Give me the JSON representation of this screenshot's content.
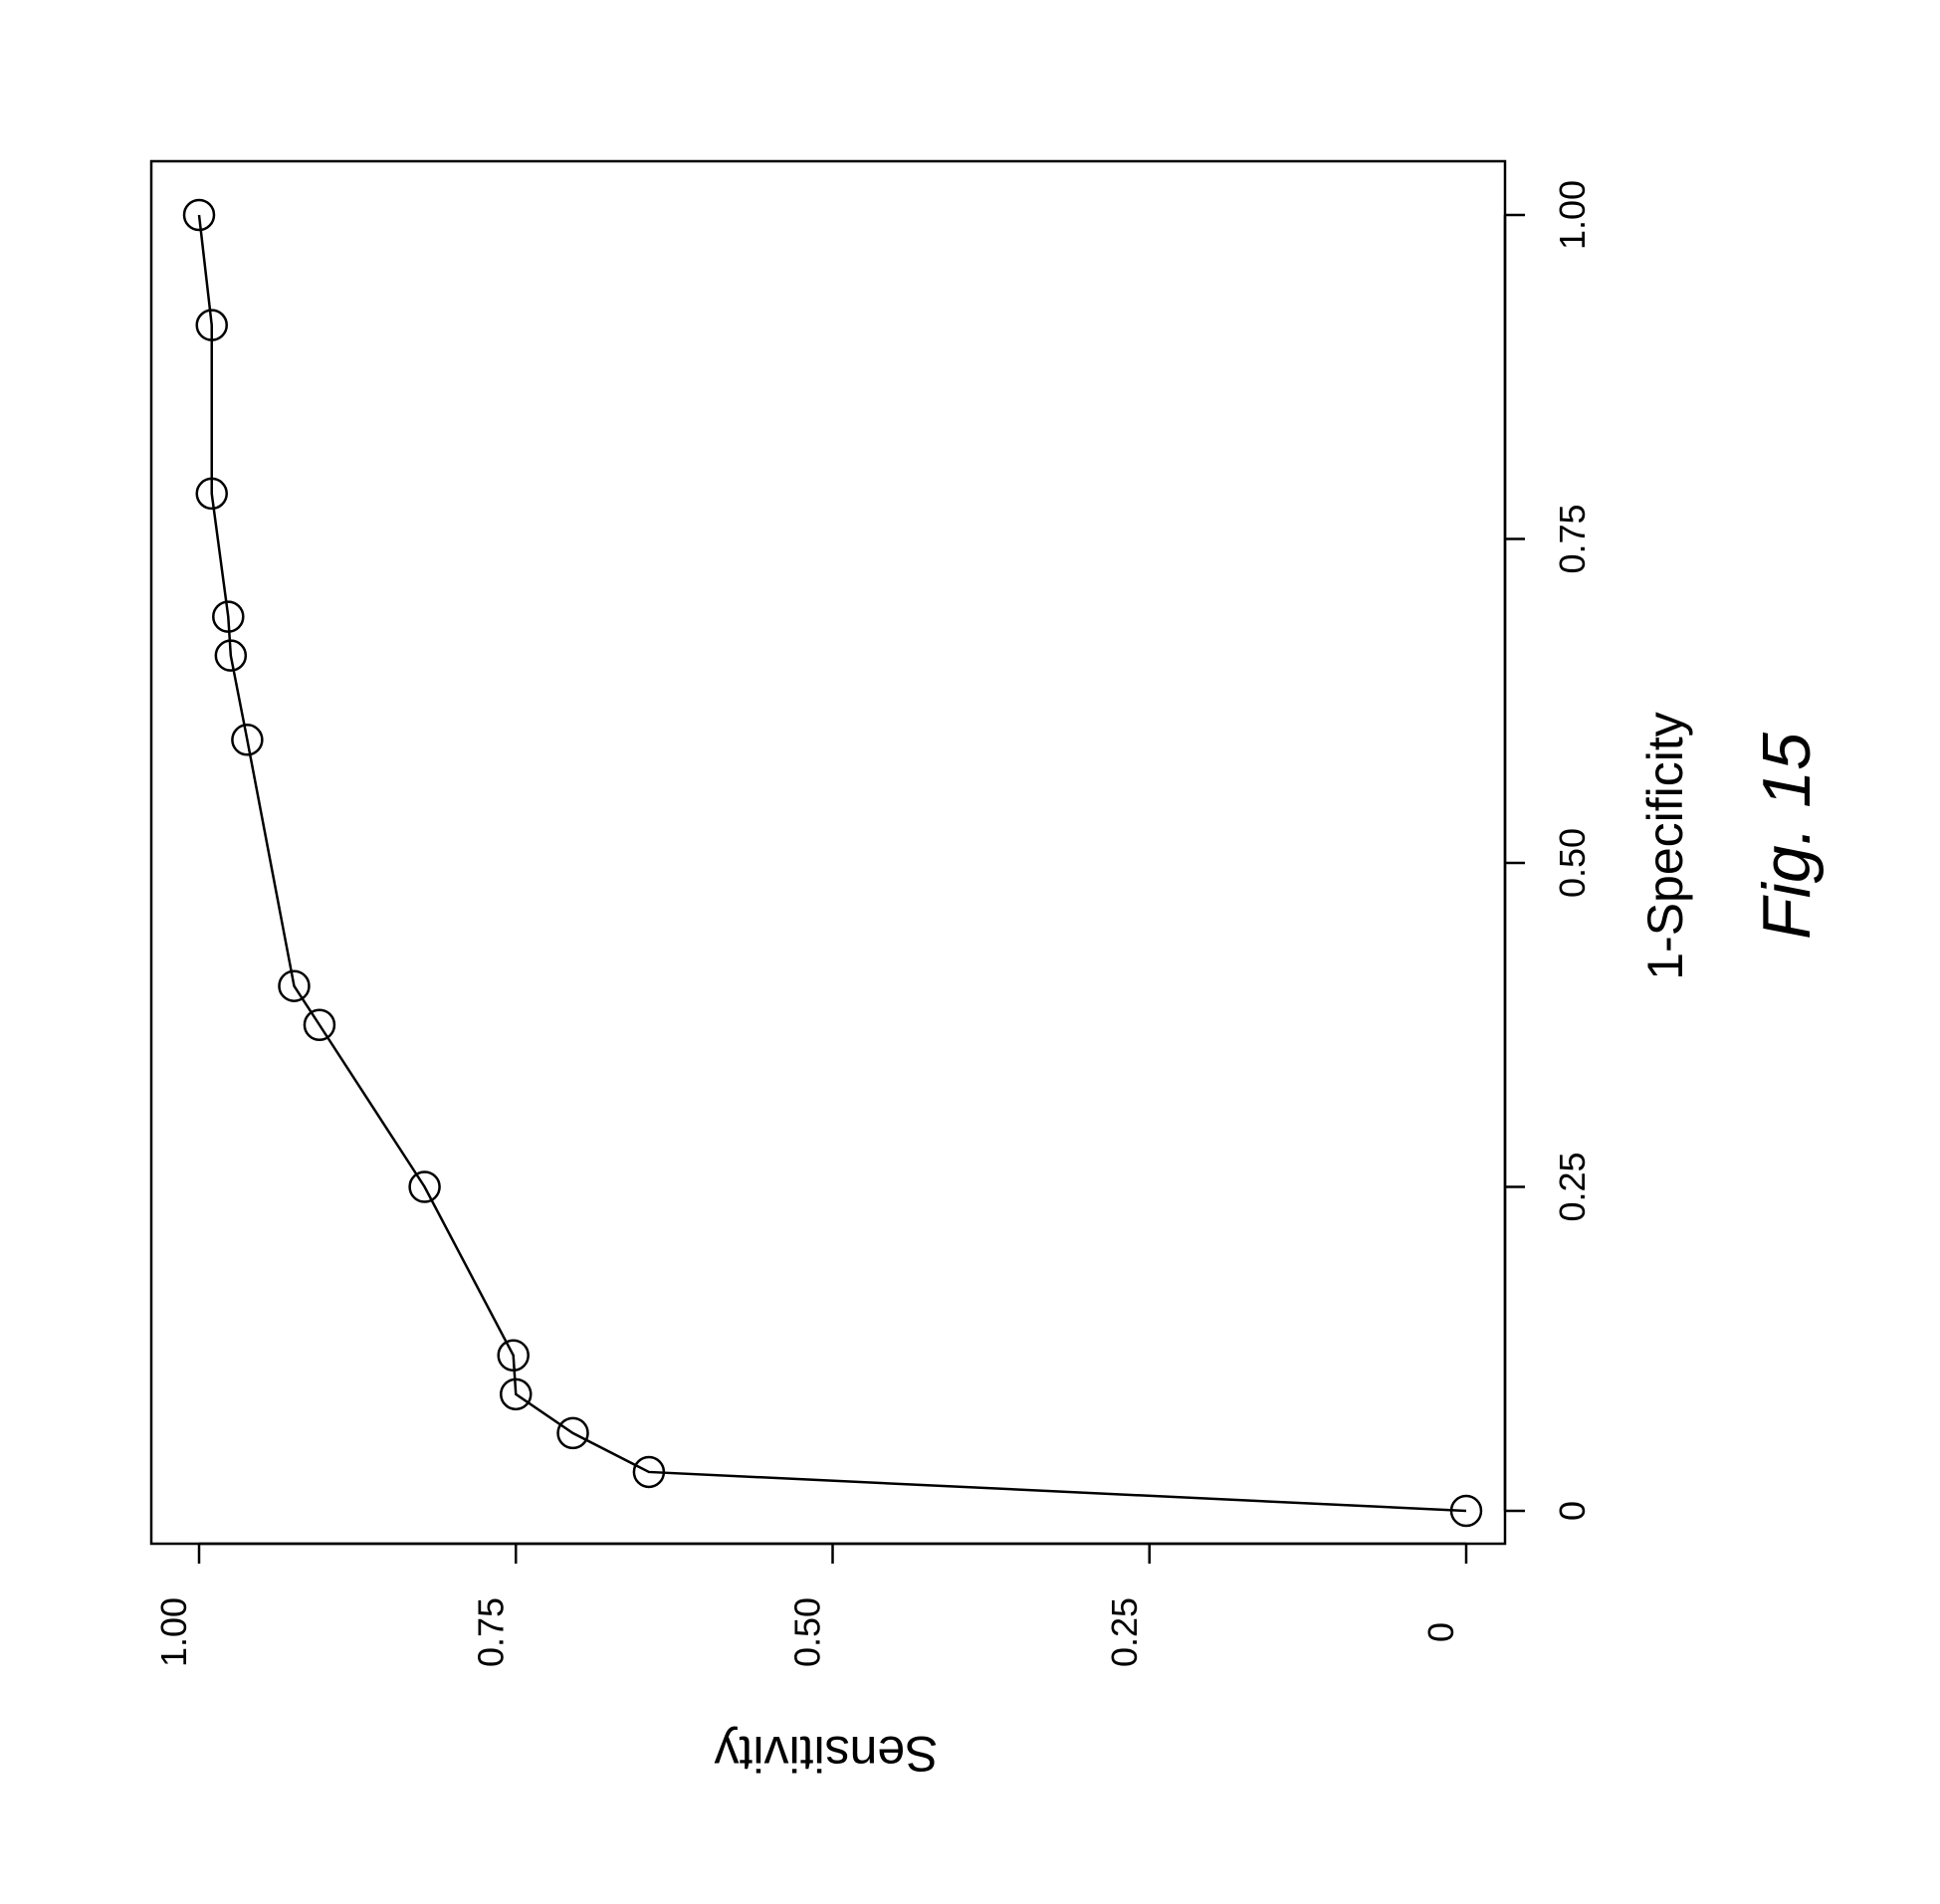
{
  "chart_data": {
    "type": "line",
    "xlabel": "1-Specificity",
    "ylabel": "Sensitivity",
    "xlim": [
      0,
      1
    ],
    "ylim": [
      0,
      1
    ],
    "x_ticks": [
      0,
      0.25,
      0.5,
      0.75,
      1.0
    ],
    "x_tick_labels": [
      "0",
      "0.25",
      "0.50",
      "0.75",
      "1.00"
    ],
    "y_ticks": [
      0,
      0.25,
      0.5,
      0.75,
      1.0
    ],
    "y_tick_labels": [
      "0",
      "0.25",
      "0.50",
      "0.75",
      "1.00"
    ],
    "grid": false,
    "orientation": "rotated 90 degrees clockwise",
    "series": [
      {
        "marker": "open-circle",
        "x": [
          0,
          0.03,
          0.06,
          0.09,
          0.12,
          0.25,
          0.375,
          0.405,
          0.595,
          0.66,
          0.69,
          0.785,
          0.915,
          1.0
        ],
        "y": [
          0,
          0.645,
          0.705,
          0.75,
          0.752,
          0.822,
          0.905,
          0.925,
          0.962,
          0.975,
          0.977,
          0.99,
          0.99,
          1.0
        ]
      }
    ]
  },
  "caption": "Fig. 15"
}
